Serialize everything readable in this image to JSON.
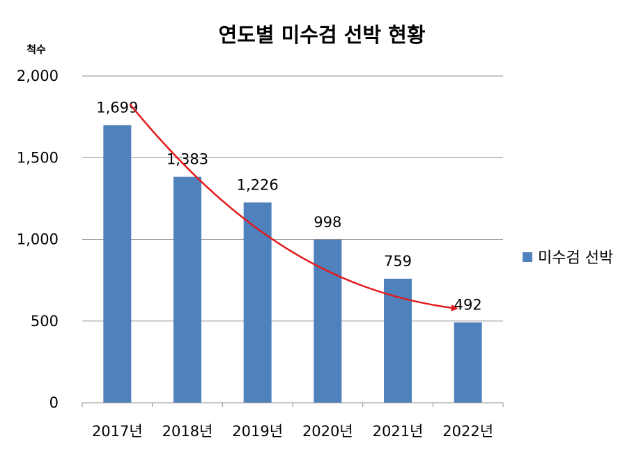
{
  "chart_data": {
    "type": "bar",
    "title": "연도별 미수검 선박 현황",
    "ylabel": "척수",
    "xlabel": "",
    "categories": [
      "2017년",
      "2018년",
      "2019년",
      "2020년",
      "2021년",
      "2022년"
    ],
    "series": [
      {
        "name": "미수검 선박",
        "values": [
          1699,
          1383,
          1226,
          998,
          759,
          492
        ]
      }
    ],
    "data_labels": [
      "1,699",
      "1,383",
      "1,226",
      "998",
      "759",
      "492"
    ],
    "ylim": [
      0,
      2000
    ],
    "yticks": [
      0,
      500,
      1000,
      1500,
      2000
    ],
    "ytick_labels": [
      "0",
      "500",
      "1,000",
      "1,500",
      "2,000"
    ],
    "grid": true,
    "legend_position": "right",
    "trend_arrow": "decreasing",
    "colors": {
      "bar": "#4f81bd",
      "trend": "#e31a1c",
      "grid": "#8c8c8c"
    }
  }
}
